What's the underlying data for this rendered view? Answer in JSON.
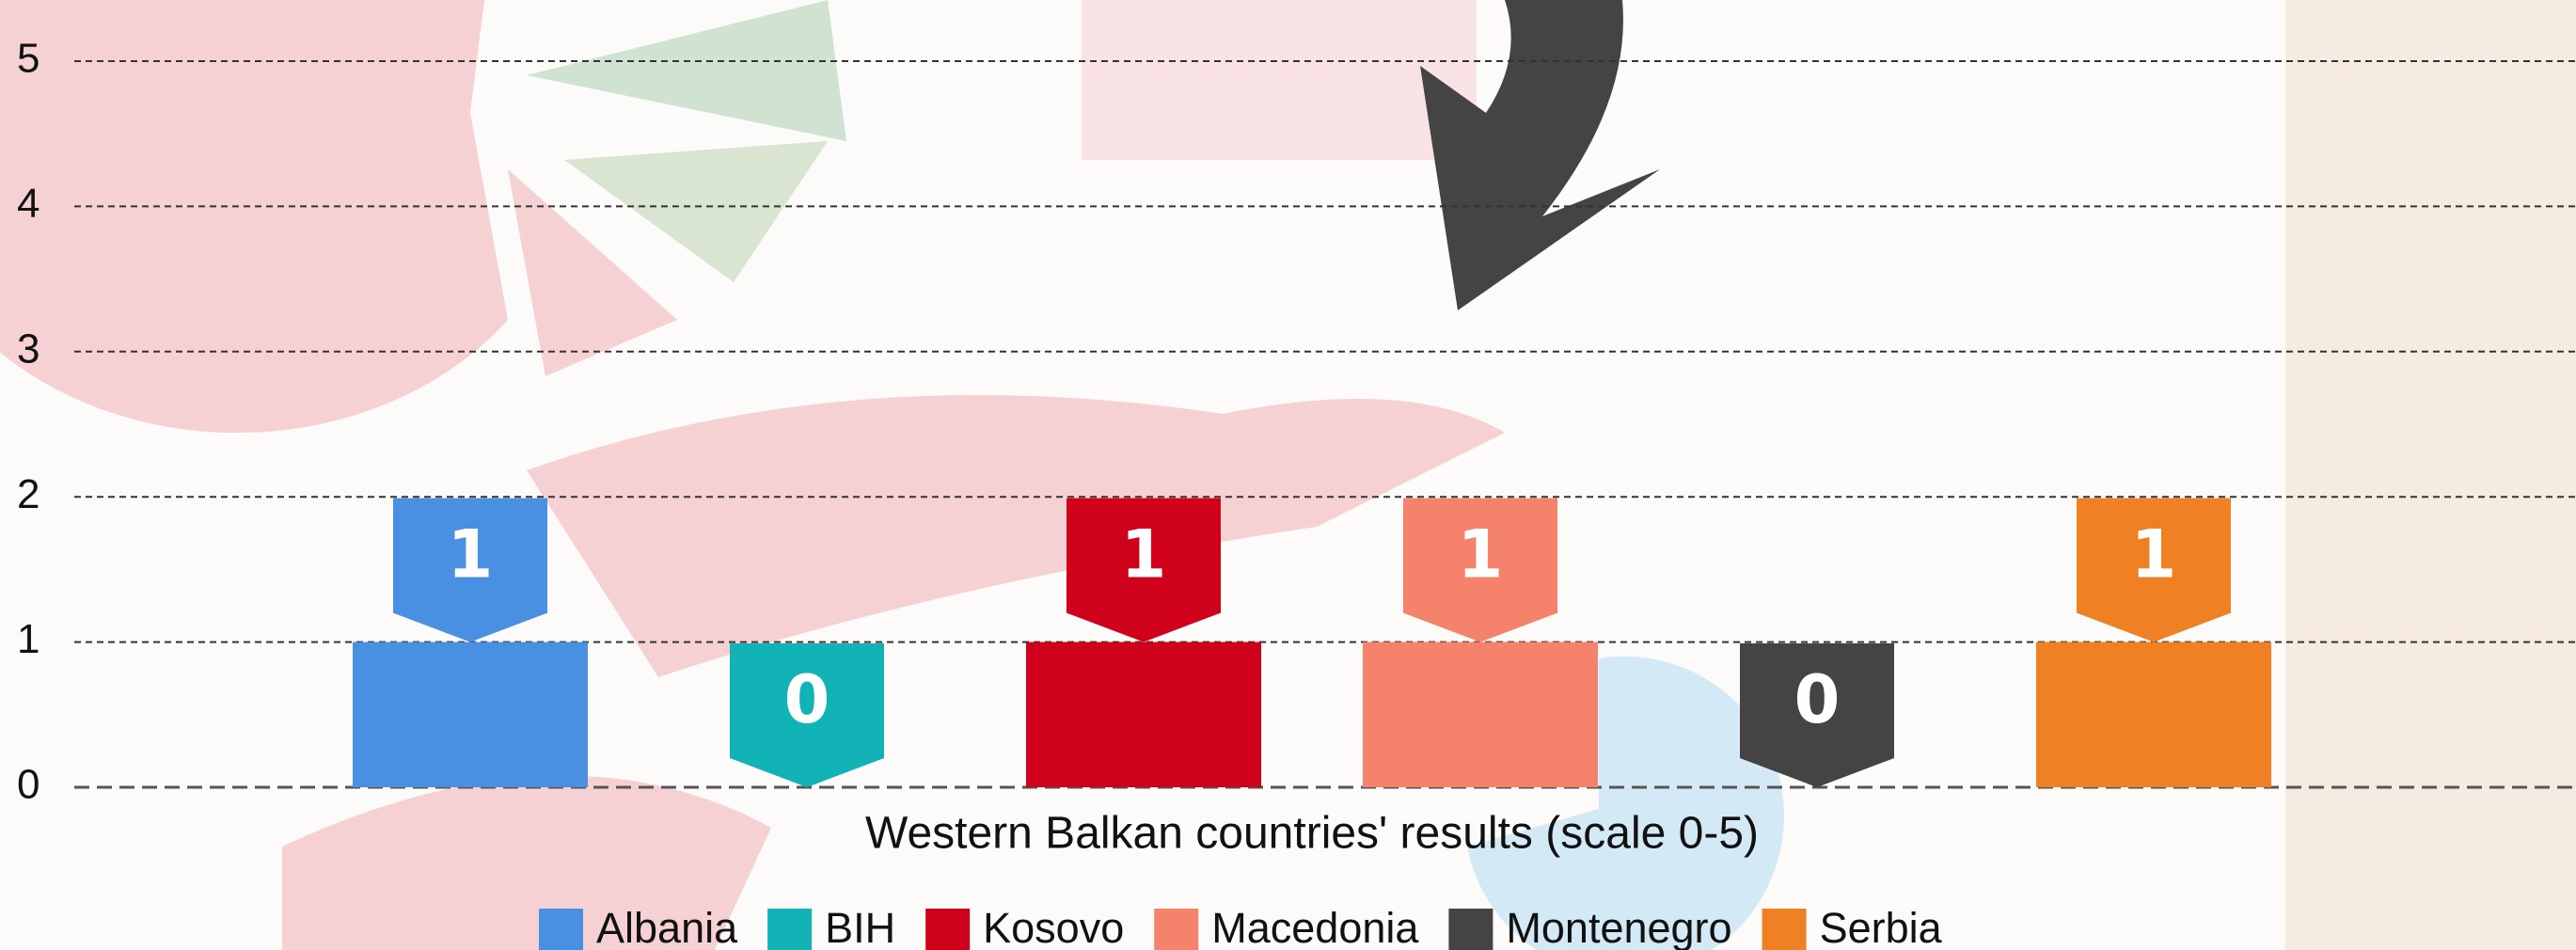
{
  "chart_data": {
    "type": "bar",
    "xlabel": "Western Balkan countries' results (scale 0-5)",
    "series": [
      {
        "name": "Albania",
        "color": "#4a90e2",
        "values": [
          1
        ]
      },
      {
        "name": "BIH",
        "color": "#12b3b6",
        "values": [
          0
        ]
      },
      {
        "name": "Kosovo",
        "color": "#d0021b",
        "values": [
          1
        ]
      },
      {
        "name": "Macedonia",
        "color": "#f5826a",
        "values": [
          1
        ]
      },
      {
        "name": "Montenegro",
        "color": "#444444",
        "values": [
          0
        ]
      },
      {
        "name": "Serbia",
        "color": "#f08024",
        "values": [
          1
        ]
      }
    ],
    "ylim": [
      0,
      5
    ],
    "yticks": [
      0,
      1,
      2,
      3,
      4,
      5
    ],
    "grid": true,
    "legend": "bottom"
  }
}
